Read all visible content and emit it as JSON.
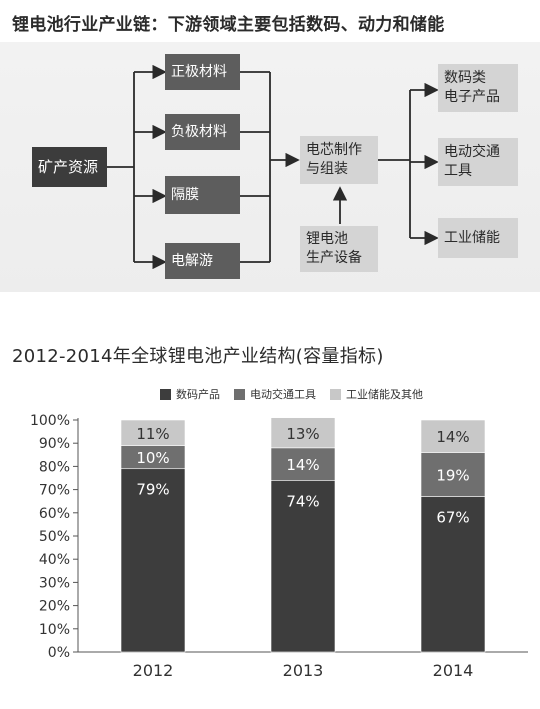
{
  "diagram": {
    "title": "锂电池行业产业链：下游领域主要包括数码、动力和储能",
    "source": "矿产资源",
    "materials": [
      "正极材料",
      "负极材料",
      "隔膜",
      "电解游"
    ],
    "center": [
      "电芯制作",
      "与组装"
    ],
    "equipment": [
      "锂电池",
      "生产设备"
    ],
    "outputs": [
      [
        "数码类",
        "电子产品"
      ],
      [
        "电动交通",
        "工具"
      ],
      [
        "工业储能"
      ]
    ]
  },
  "chart_data": {
    "type": "bar",
    "stacked": true,
    "title": "2012-2014年全球锂电池产业结构(容量指标)",
    "categories": [
      "2012",
      "2013",
      "2014"
    ],
    "series": [
      {
        "name": "数码产品",
        "values": [
          79,
          74,
          67
        ],
        "color": "#3d3d3d"
      },
      {
        "name": "电动交通工具",
        "values": [
          10,
          14,
          19
        ],
        "color": "#6f6f6f"
      },
      {
        "name": "工业储能及其他",
        "values": [
          11,
          13,
          14
        ],
        "color": "#c8c8c8"
      }
    ],
    "data_labels": [
      [
        "79%",
        "10%",
        "11%"
      ],
      [
        "74%",
        "14%",
        "13%"
      ],
      [
        "67%",
        "19%",
        "14%"
      ]
    ],
    "yticks": [
      "0%",
      "10%",
      "20%",
      "30%",
      "40%",
      "50%",
      "60%",
      "70%",
      "80%",
      "90%",
      "100%"
    ],
    "ylim": [
      0,
      100
    ],
    "legend_position": "top",
    "grid": false
  }
}
